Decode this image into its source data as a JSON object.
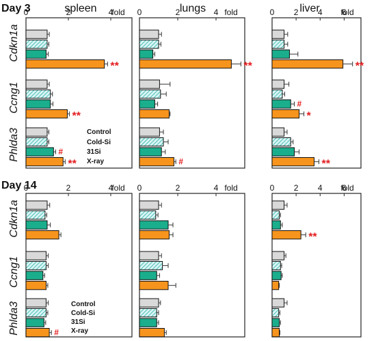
{
  "chart_data": [
    {
      "type": "bar",
      "panel_group": "Day 3",
      "organ": "spleen",
      "axis_unit": "fold",
      "xlim": [
        0,
        5
      ],
      "ticks": [
        0,
        2,
        4
      ],
      "genes": [
        "Cdkn1a",
        "Ccng1",
        "Phlda3"
      ],
      "series": [
        {
          "name": "Control",
          "values": [
            1.0,
            1.0,
            1.0
          ],
          "errors": [
            0.1,
            0.1,
            0.08
          ]
        },
        {
          "name": "Cold-Si",
          "values": [
            1.0,
            1.15,
            1.0
          ],
          "errors": [
            0.08,
            0.1,
            0.08
          ]
        },
        {
          "name": "31Si",
          "values": [
            0.95,
            1.15,
            1.3
          ],
          "errors": [
            0.1,
            0.12,
            0.1
          ]
        },
        {
          "name": "X-ray",
          "values": [
            3.7,
            1.95,
            1.75
          ],
          "errors": [
            0.15,
            0.1,
            0.1
          ]
        }
      ],
      "annotations": [
        {
          "gene": "Cdkn1a",
          "series": "X-ray",
          "text": "**"
        },
        {
          "gene": "Ccng1",
          "series": "X-ray",
          "text": "**"
        },
        {
          "gene": "Phlda3",
          "series": "31Si",
          "text": "#"
        },
        {
          "gene": "Phlda3",
          "series": "X-ray",
          "text": "**"
        }
      ]
    },
    {
      "type": "bar",
      "panel_group": "Day 3",
      "organ": "lungs",
      "axis_unit": "fold",
      "xlim": [
        0,
        5.5
      ],
      "ticks": [
        0,
        2,
        4
      ],
      "genes": [
        "Cdkn1a",
        "Ccng1",
        "Phlda3"
      ],
      "series": [
        {
          "name": "Control",
          "values": [
            1.0,
            1.05,
            1.05
          ],
          "errors": [
            0.15,
            0.55,
            0.2
          ]
        },
        {
          "name": "Cold-Si",
          "values": [
            1.0,
            1.1,
            1.25
          ],
          "errors": [
            0.12,
            0.3,
            0.25
          ]
        },
        {
          "name": "31Si",
          "values": [
            0.7,
            0.8,
            1.15
          ],
          "errors": [
            0.1,
            0.15,
            0.2
          ]
        },
        {
          "name": "X-ray",
          "values": [
            4.8,
            1.55,
            1.8
          ],
          "errors": [
            0.5,
            0.05,
            0.1
          ]
        }
      ],
      "annotations": [
        {
          "gene": "Cdkn1a",
          "series": "X-ray",
          "text": "**"
        },
        {
          "gene": "Phlda3",
          "series": "X-ray",
          "text": "#"
        }
      ]
    },
    {
      "type": "bar",
      "panel_group": "Day 3",
      "organ": "liver",
      "axis_unit": "fold",
      "xlim": [
        0,
        7.4
      ],
      "ticks": [
        0,
        2,
        4,
        6
      ],
      "genes": [
        "Cdkn1a",
        "Ccng1",
        "Phlda3"
      ],
      "series": [
        {
          "name": "Control",
          "values": [
            1.0,
            1.0,
            1.0
          ],
          "errors": [
            0.3,
            0.4,
            0.25
          ]
        },
        {
          "name": "Cold-Si",
          "values": [
            1.0,
            0.85,
            1.55
          ],
          "errors": [
            0.3,
            0.2,
            0.2
          ]
        },
        {
          "name": "31Si",
          "values": [
            1.45,
            1.55,
            1.85
          ],
          "errors": [
            0.7,
            0.3,
            0.4
          ]
        },
        {
          "name": "X-ray",
          "values": [
            5.9,
            2.25,
            3.5
          ],
          "errors": [
            0.8,
            0.4,
            0.4
          ]
        }
      ],
      "annotations": [
        {
          "gene": "Ccng1",
          "series": "31Si",
          "text": "#"
        },
        {
          "gene": "Ccng1",
          "series": "X-ray",
          "text": "*"
        },
        {
          "gene": "Cdkn1a",
          "series": "X-ray",
          "text": "**"
        },
        {
          "gene": "Phlda3",
          "series": "X-ray",
          "text": "**"
        }
      ]
    },
    {
      "type": "bar",
      "panel_group": "Day 14",
      "organ": "spleen",
      "axis_unit": "fold",
      "xlim": [
        0,
        5
      ],
      "ticks": [
        0,
        2,
        4
      ],
      "genes": [
        "Cdkn1a",
        "Ccng1",
        "Phlda3"
      ],
      "series": [
        {
          "name": "Control",
          "values": [
            1.0,
            0.95,
            0.95
          ],
          "errors": [
            0.12,
            0.1,
            0.1
          ]
        },
        {
          "name": "Cold-Si",
          "values": [
            0.9,
            0.95,
            0.95
          ],
          "errors": [
            0.08,
            0.1,
            0.08
          ]
        },
        {
          "name": "31Si",
          "values": [
            1.0,
            0.8,
            0.85
          ],
          "errors": [
            0.15,
            0.08,
            0.08
          ]
        },
        {
          "name": "X-ray",
          "values": [
            1.55,
            0.95,
            1.1
          ],
          "errors": [
            0.1,
            0.08,
            0.1
          ]
        }
      ],
      "annotations": [
        {
          "gene": "Phlda3",
          "series": "X-ray",
          "text": "#"
        }
      ]
    },
    {
      "type": "bar",
      "panel_group": "Day 14",
      "organ": "lungs",
      "axis_unit": "fold",
      "xlim": [
        0,
        5.5
      ],
      "ticks": [
        0,
        2,
        4
      ],
      "genes": [
        "Cdkn1a",
        "Ccng1",
        "Phlda3"
      ],
      "series": [
        {
          "name": "Control",
          "values": [
            1.0,
            1.0,
            1.0
          ],
          "errors": [
            0.15,
            0.15,
            0.1
          ]
        },
        {
          "name": "Cold-Si",
          "values": [
            0.85,
            1.2,
            0.9
          ],
          "errors": [
            0.12,
            0.3,
            0.1
          ]
        },
        {
          "name": "31Si",
          "values": [
            1.5,
            0.9,
            0.9
          ],
          "errors": [
            0.25,
            0.15,
            0.1
          ]
        },
        {
          "name": "X-ray",
          "values": [
            1.55,
            1.5,
            1.3
          ],
          "errors": [
            0.2,
            0.4,
            0.1
          ]
        }
      ],
      "annotations": []
    },
    {
      "type": "bar",
      "panel_group": "Day 14",
      "organ": "liver",
      "axis_unit": "fold",
      "xlim": [
        0,
        7.4
      ],
      "ticks": [
        0,
        2,
        4,
        6
      ],
      "genes": [
        "Cdkn1a",
        "Ccng1",
        "Phlda3"
      ],
      "series": [
        {
          "name": "Control",
          "values": [
            1.0,
            1.0,
            1.0
          ],
          "errors": [
            0.25,
            0.15,
            0.25
          ]
        },
        {
          "name": "Cold-Si",
          "values": [
            0.6,
            0.7,
            0.55
          ],
          "errors": [
            0.1,
            0.1,
            0.1
          ]
        },
        {
          "name": "31Si",
          "values": [
            0.7,
            0.75,
            0.6
          ],
          "errors": [
            0.15,
            0.1,
            0.1
          ]
        },
        {
          "name": "X-ray",
          "values": [
            2.4,
            0.55,
            0.6
          ],
          "errors": [
            0.4,
            0.05,
            0.05
          ]
        }
      ],
      "annotations": [
        {
          "gene": "Cdkn1a",
          "series": "X-ray",
          "text": "**"
        }
      ]
    }
  ],
  "legend": {
    "entries": [
      "Control",
      "Cold-Si",
      "31Si",
      "X-ray"
    ]
  },
  "day_labels": [
    "Day 3",
    "Day 14"
  ],
  "organ_labels": [
    "spleen",
    "lungs",
    "liver"
  ],
  "gene_labels": [
    "Cdkn1a",
    "Ccng1",
    "Phlda3"
  ],
  "colors": {
    "control": "#d9d9d9",
    "cold_si_base": "#d8f4f4",
    "cold_si_hatch": "#2bb3a6",
    "si31": "#1aae8c",
    "xray": "#f7941d",
    "annotation": "#e31a1c",
    "frame": "#222222"
  }
}
